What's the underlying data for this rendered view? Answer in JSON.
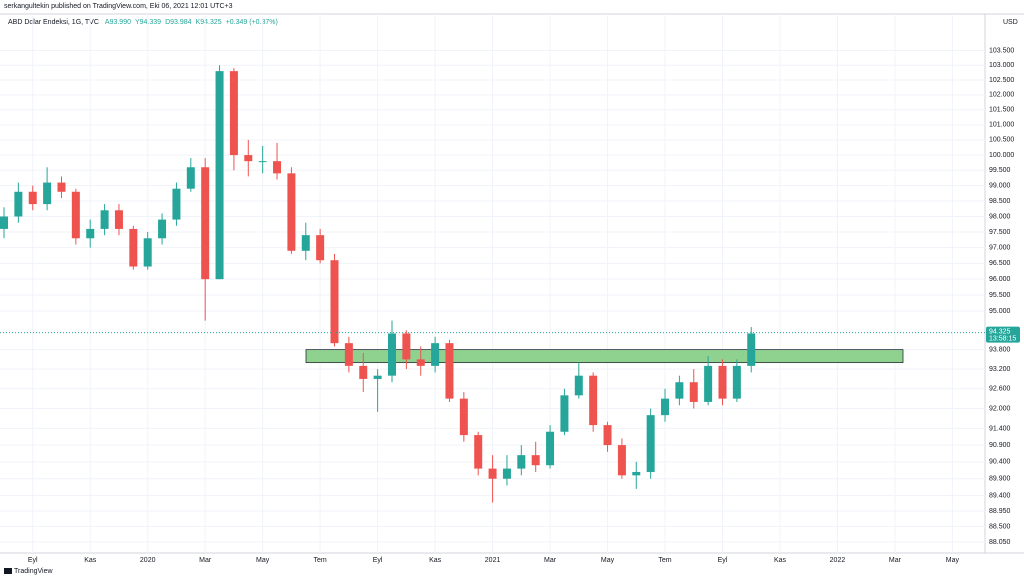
{
  "header": {
    "published": "serkangultekin published on TradingView.com, Eki 06, 2021 12:01 UTC+3"
  },
  "legend": {
    "symbol": "ABD Dolar Endeksi, 1G, TVC",
    "items": [
      "A93.990",
      "Y94.339",
      "D93.984",
      "K94.325",
      "+0.349 (+0.37%)"
    ]
  },
  "footer": {
    "brand": "TradingView"
  },
  "chart_data": {
    "type": "candlestick",
    "currency": "USD",
    "log_scale": true,
    "grid": true,
    "up_color": "#26a69a",
    "down_color": "#ef5350",
    "categories": [
      null,
      null,
      "Eyl",
      null,
      null,
      null,
      "Kas",
      null,
      null,
      null,
      "2020",
      null,
      null,
      null,
      "Mar",
      null,
      null,
      null,
      "May",
      null,
      null,
      null,
      "Tem",
      null,
      null,
      null,
      "Eyl",
      null,
      null,
      null,
      "Kas",
      null,
      null,
      null,
      "2021",
      null,
      null,
      null,
      "Mar",
      null,
      null,
      null,
      "May",
      null,
      null,
      null,
      "Tem",
      null,
      null,
      null,
      "Eyl",
      null,
      null,
      null,
      "Kas",
      null,
      null,
      null,
      "2022",
      null,
      null,
      null,
      "Mar",
      null,
      null,
      null,
      "May",
      null,
      null
    ],
    "series": [
      {
        "name": "ABD Dolar Endeksi",
        "open": [
          97.6,
          98.0,
          98.8,
          98.4,
          99.1,
          98.8,
          97.3,
          97.6,
          98.2,
          97.6,
          96.4,
          97.3,
          97.9,
          98.9,
          99.6,
          96.0,
          102.8,
          100.0,
          99.8,
          99.8,
          99.4,
          96.9,
          97.4,
          96.6,
          94.0,
          93.3,
          92.9,
          93.0,
          94.3,
          93.5,
          93.3,
          94.0,
          92.3,
          91.2,
          90.2,
          89.9,
          90.2,
          90.6,
          90.3,
          91.3,
          92.4,
          93.0,
          91.5,
          90.9,
          90.0,
          90.1,
          91.8,
          92.3,
          92.8,
          92.2,
          93.3,
          92.3,
          93.3,
          null,
          null,
          null,
          null,
          null,
          null,
          null,
          null,
          null,
          null,
          null,
          null,
          null,
          null,
          null,
          null
        ],
        "high": [
          98.3,
          99.1,
          99.0,
          99.6,
          99.3,
          98.9,
          97.9,
          98.4,
          98.4,
          97.7,
          97.5,
          98.1,
          99.1,
          99.9,
          99.9,
          103.0,
          102.9,
          100.5,
          100.3,
          100.4,
          99.6,
          97.8,
          97.6,
          96.8,
          94.2,
          93.7,
          93.2,
          94.7,
          94.4,
          93.9,
          94.2,
          94.1,
          92.5,
          91.3,
          90.6,
          90.6,
          90.9,
          91.0,
          91.5,
          92.6,
          93.4,
          93.1,
          91.6,
          91.1,
          90.4,
          92.0,
          92.6,
          93.0,
          93.2,
          93.6,
          93.5,
          93.5,
          94.5,
          null,
          null,
          null,
          null,
          null,
          null,
          null,
          null,
          null,
          null,
          null,
          null,
          null,
          null,
          null,
          null
        ],
        "low": [
          97.3,
          97.8,
          98.2,
          98.2,
          98.6,
          97.1,
          97.0,
          97.4,
          97.4,
          96.3,
          96.3,
          97.1,
          97.7,
          98.8,
          94.7,
          96.0,
          99.5,
          99.3,
          99.4,
          99.2,
          96.8,
          96.6,
          96.5,
          93.9,
          93.1,
          92.5,
          91.9,
          92.8,
          93.2,
          93.0,
          93.1,
          92.2,
          91.0,
          90.0,
          89.2,
          89.7,
          90.0,
          90.1,
          90.2,
          91.2,
          92.3,
          91.3,
          90.7,
          89.9,
          89.6,
          89.9,
          91.6,
          92.1,
          92.0,
          92.1,
          92.1,
          92.2,
          93.1,
          null,
          null,
          null,
          null,
          null,
          null,
          null,
          null,
          null,
          null,
          null,
          null,
          null,
          null,
          null,
          null
        ],
        "close": [
          98.0,
          98.8,
          98.4,
          99.1,
          98.8,
          97.3,
          97.6,
          98.2,
          97.6,
          96.4,
          97.3,
          97.9,
          98.9,
          99.6,
          96.0,
          102.8,
          100.0,
          99.8,
          99.8,
          99.4,
          96.9,
          97.4,
          96.6,
          94.0,
          93.3,
          92.9,
          93.0,
          94.3,
          93.5,
          93.3,
          94.0,
          92.3,
          91.2,
          90.2,
          89.9,
          90.2,
          90.6,
          90.3,
          91.3,
          92.4,
          93.0,
          91.5,
          90.9,
          90.0,
          90.1,
          91.8,
          92.3,
          92.8,
          92.2,
          93.3,
          92.3,
          93.3,
          94.3,
          null,
          null,
          null,
          null,
          null,
          null,
          null,
          null,
          null,
          null,
          null,
          null,
          null,
          null,
          null,
          null
        ]
      }
    ],
    "ylim": [
      87.73,
      104.75
    ],
    "yticks": [
      {
        "value": 103.5,
        "label": "103.500"
      },
      {
        "value": 103,
        "label": "103.000"
      },
      {
        "value": 102.5,
        "label": "102.500"
      },
      {
        "value": 102,
        "label": "102.000"
      },
      {
        "value": 101.5,
        "label": "101.500"
      },
      {
        "value": 101,
        "label": "101.000"
      },
      {
        "value": 100.5,
        "label": "100.500"
      },
      {
        "value": 100,
        "label": "100.000"
      },
      {
        "value": 99.5,
        "label": "99.500"
      },
      {
        "value": 99,
        "label": "99.000"
      },
      {
        "value": 98.5,
        "label": "98.500"
      },
      {
        "value": 98,
        "label": "98.000"
      },
      {
        "value": 97.5,
        "label": "97.500"
      },
      {
        "value": 97,
        "label": "97.000"
      },
      {
        "value": 96.5,
        "label": "96.500"
      },
      {
        "value": 96,
        "label": "96.000"
      },
      {
        "value": 95.5,
        "label": "95.500"
      },
      {
        "value": 95,
        "label": "95.000"
      },
      {
        "value": 93.8,
        "label": "93.800"
      },
      {
        "value": 93.2,
        "label": "93.200"
      },
      {
        "value": 92.6,
        "label": "92.600"
      },
      {
        "value": 92,
        "label": "92.000"
      },
      {
        "value": 91.4,
        "label": "91.400"
      },
      {
        "value": 90.9,
        "label": "90.900"
      },
      {
        "value": 90.4,
        "label": "90.400"
      },
      {
        "value": 89.9,
        "label": "89.900"
      },
      {
        "value": 89.4,
        "label": "89.400"
      },
      {
        "value": 88.95,
        "label": "88.950"
      },
      {
        "value": 88.5,
        "label": "88.500"
      },
      {
        "value": 88.05,
        "label": "88.050"
      }
    ],
    "last_price": {
      "value": 94.325,
      "label": "94.325"
    },
    "countdown": "13:58:15",
    "zone": {
      "top": 93.8,
      "bottom": 93.4,
      "color": "#8fd18f"
    }
  }
}
